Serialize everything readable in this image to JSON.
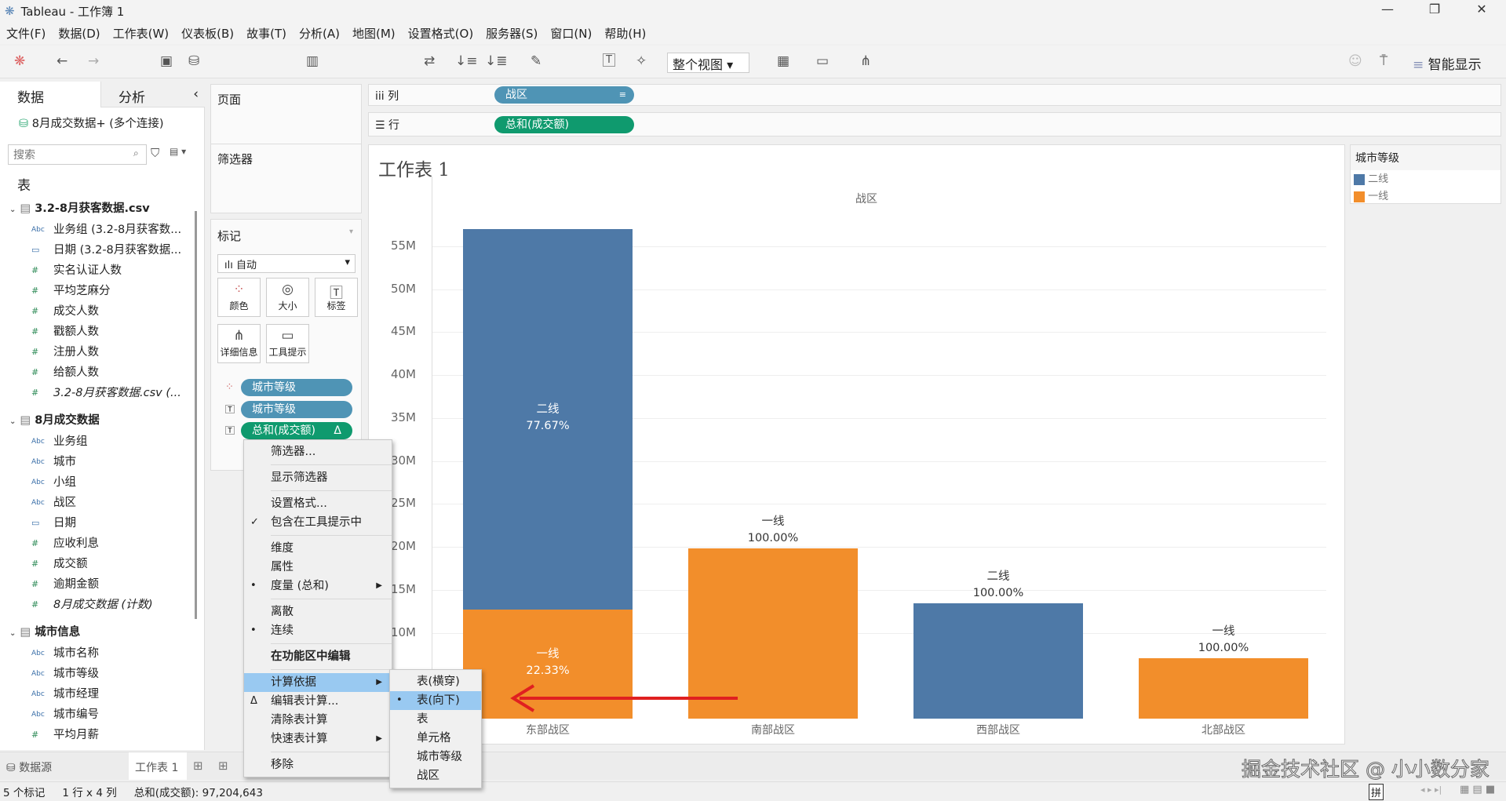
{
  "window": {
    "title": "Tableau - 工作簿 1",
    "minimize": "—",
    "restore": "❐",
    "close": "✕"
  },
  "menu": [
    "文件(F)",
    "数据(D)",
    "工作表(W)",
    "仪表板(B)",
    "故事(T)",
    "分析(A)",
    "地图(M)",
    "设置格式(O)",
    "服务器(S)",
    "窗口(N)",
    "帮助(H)"
  ],
  "toolbar": {
    "fit": "整个视图",
    "show_me": "智能显示"
  },
  "left_panel": {
    "tab_data": "数据",
    "tab_analysis": "分析",
    "datasource": "8月成交数据+ (多个连接)",
    "search_placeholder": "搜索",
    "tables_heading": "表",
    "groups": [
      {
        "name": "3.2-8月获客数据.csv",
        "fields": [
          {
            "type": "Abc",
            "name": "业务组 (3.2-8月获客数..."
          },
          {
            "type": "date",
            "name": "日期 (3.2-8月获客数据..."
          },
          {
            "type": "#",
            "name": "实名认证人数"
          },
          {
            "type": "#",
            "name": "平均芝麻分"
          },
          {
            "type": "#",
            "name": "成交人数"
          },
          {
            "type": "#",
            "name": "戳额人数"
          },
          {
            "type": "#",
            "name": "注册人数"
          },
          {
            "type": "#",
            "name": "给额人数"
          },
          {
            "type": "#",
            "name": "3.2-8月获客数据.csv (..."
          }
        ]
      },
      {
        "name": "8月成交数据",
        "fields": [
          {
            "type": "Abc",
            "name": "业务组"
          },
          {
            "type": "Abc",
            "name": "城市"
          },
          {
            "type": "Abc",
            "name": "小组"
          },
          {
            "type": "Abc",
            "name": "战区"
          },
          {
            "type": "date",
            "name": "日期"
          },
          {
            "type": "#",
            "name": "应收利息"
          },
          {
            "type": "#",
            "name": "成交额"
          },
          {
            "type": "#",
            "name": "逾期金额"
          },
          {
            "type": "#",
            "name": "8月成交数据 (计数)"
          }
        ]
      },
      {
        "name": "城市信息",
        "fields": [
          {
            "type": "Abc",
            "name": "城市名称"
          },
          {
            "type": "Abc",
            "name": "城市等级"
          },
          {
            "type": "Abc",
            "name": "城市经理"
          },
          {
            "type": "Abc",
            "name": "城市编号"
          },
          {
            "type": "#",
            "name": "平均月薪"
          }
        ]
      }
    ]
  },
  "shelves": {
    "pages": "页面",
    "filters": "筛选器",
    "columns_label": "列",
    "rows_label": "行",
    "columns_pill": "战区",
    "rows_pill": "总和(成交额)"
  },
  "marks": {
    "title": "标记",
    "type": "自动",
    "buttons": [
      "颜色",
      "大小",
      "标签",
      "详细信息",
      "工具提示"
    ],
    "pills": [
      "城市等级",
      "城市等级",
      "总和(成交额)"
    ],
    "delta": "Δ"
  },
  "context_menu": {
    "items": [
      {
        "label": "筛选器..."
      },
      {
        "sep": true
      },
      {
        "label": "显示筛选器"
      },
      {
        "sep": true
      },
      {
        "label": "设置格式..."
      },
      {
        "label": "包含在工具提示中",
        "mark": "✓"
      },
      {
        "sep": true
      },
      {
        "label": "维度"
      },
      {
        "label": "属性"
      },
      {
        "label": "度量 (总和)",
        "mark": "•",
        "submenu": true
      },
      {
        "sep": true
      },
      {
        "label": "离散"
      },
      {
        "label": "连续",
        "mark": "•"
      },
      {
        "sep": true
      },
      {
        "label": "在功能区中编辑",
        "bold": true
      },
      {
        "sep": true
      },
      {
        "label": "计算依据",
        "submenu": true,
        "highlighted": true
      },
      {
        "label": "编辑表计算...",
        "mark": "Δ"
      },
      {
        "label": "清除表计算"
      },
      {
        "label": "快速表计算",
        "submenu": true
      },
      {
        "sep": true
      },
      {
        "label": "移除"
      }
    ],
    "submenu": [
      {
        "label": "表(横穿)"
      },
      {
        "label": "表(向下)",
        "mark": "•",
        "highlighted": true
      },
      {
        "label": "表"
      },
      {
        "label": "单元格"
      },
      {
        "label": "城市等级"
      },
      {
        "label": "战区"
      }
    ]
  },
  "legend": {
    "title": "城市等级",
    "items": [
      {
        "label": "二线",
        "color": "#4e79a7"
      },
      {
        "label": "一线",
        "color": "#f28e2b"
      }
    ]
  },
  "chart_data": {
    "type": "bar",
    "stacked": true,
    "title": "工作表 1",
    "column_header": "战区",
    "categories": [
      "东部战区",
      "南部战区",
      "西部战区",
      "北部战区"
    ],
    "yticks": [
      "10M",
      "15M",
      "20M",
      "25M",
      "30M",
      "35M",
      "40M",
      "45M",
      "50M",
      "55M"
    ],
    "ylim": [
      0,
      58
    ],
    "series": [
      {
        "name": "一线",
        "color": "#f28e2b",
        "values": [
          12.7,
          19.8,
          0,
          7.0
        ],
        "labels": [
          "22.33%",
          "100.00%",
          "",
          "100.00%"
        ]
      },
      {
        "name": "二线",
        "color": "#4e79a7",
        "values": [
          44.3,
          0,
          13.4,
          0
        ],
        "labels": [
          "77.67%",
          "",
          "100.00%",
          ""
        ]
      }
    ],
    "grid": "horizontal"
  },
  "bottom": {
    "datasource_tab": "数据源",
    "sheet_tab": "工作表 1",
    "watermark": "掘金技术社区 @ 小小数分家",
    "ime": "拼"
  },
  "status": {
    "marks": "5 个标记",
    "dims": "1 行 x 4 列",
    "sum": "总和(成交额): 97,204,643"
  }
}
